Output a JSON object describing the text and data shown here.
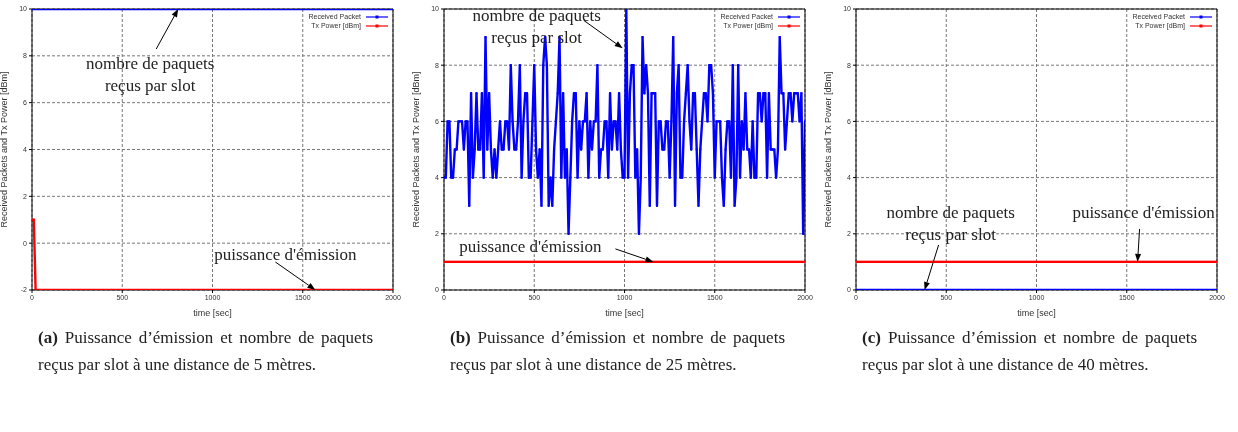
{
  "chart_data": [
    {
      "type": "line",
      "xlabel": "time [sec]",
      "ylabel": "Received Packets and Tx Power [dBm]",
      "xlim": [
        0,
        2000
      ],
      "xticks": [
        0,
        500,
        1000,
        1500,
        2000
      ],
      "ylim": [
        -2,
        10
      ],
      "yticks": [
        -2,
        0,
        2,
        4,
        6,
        8,
        10
      ],
      "grid": true,
      "legend": "top right",
      "marker": "square",
      "line_style": "solid",
      "x": [
        0,
        10,
        20,
        30,
        40,
        50,
        60,
        70,
        80,
        90,
        100,
        110,
        120,
        130,
        140,
        150,
        160,
        170,
        180,
        190,
        200,
        210,
        220,
        230,
        240,
        250,
        260,
        270,
        280,
        290,
        300,
        310,
        320,
        330,
        340,
        350,
        360,
        370,
        380,
        390,
        400,
        410,
        420,
        430,
        440,
        450,
        460,
        470,
        480,
        490,
        500,
        510,
        520,
        530,
        540,
        550,
        560,
        570,
        580,
        590,
        600,
        610,
        620,
        630,
        640,
        650,
        660,
        670,
        680,
        690,
        700,
        710,
        720,
        730,
        740,
        750,
        760,
        770,
        780,
        790,
        800,
        810,
        820,
        830,
        840,
        850,
        860,
        870,
        880,
        890,
        900,
        910,
        920,
        930,
        940,
        950,
        960,
        970,
        980,
        990,
        1000,
        1010,
        1020,
        1030,
        1040,
        1050,
        1060,
        1070,
        1080,
        1090,
        1100,
        1110,
        1120,
        1130,
        1140,
        1150,
        1160,
        1170,
        1180,
        1190,
        1200,
        1210,
        1220,
        1230,
        1240,
        1250,
        1260,
        1270,
        1280,
        1290,
        1300,
        1310,
        1320,
        1330,
        1340,
        1350,
        1360,
        1370,
        1380,
        1390,
        1400,
        1410,
        1420,
        1430,
        1440,
        1450,
        1460,
        1470,
        1480,
        1490,
        1500,
        1510,
        1520,
        1530,
        1540,
        1550,
        1560,
        1570,
        1580,
        1590,
        1600,
        1610,
        1620,
        1630,
        1640,
        1650,
        1660,
        1670,
        1680,
        1690,
        1700,
        1710,
        1720,
        1730,
        1740,
        1750,
        1760,
        1770,
        1780,
        1790,
        1800,
        1810,
        1820,
        1830,
        1840,
        1850,
        1860,
        1870,
        1880,
        1890,
        1900,
        1910,
        1920,
        1930,
        1940,
        1950,
        1960,
        1970,
        1980,
        1990,
        2000
      ],
      "series": [
        {
          "name": "Received Packet",
          "color": "#0000ff",
          "values": [
            10,
            10,
            10,
            10,
            10,
            10,
            10,
            10,
            10,
            10,
            10,
            10,
            10,
            10,
            10,
            10,
            10,
            10,
            10,
            10,
            10,
            10,
            10,
            10,
            10,
            10,
            10,
            10,
            10,
            10,
            10,
            10,
            10,
            10,
            10,
            10,
            10,
            10,
            10,
            10,
            10,
            10,
            10,
            10,
            10,
            10,
            10,
            10,
            10,
            10,
            10,
            10,
            10,
            10,
            10,
            10,
            10,
            10,
            10,
            10,
            10,
            10,
            10,
            10,
            10,
            10,
            10,
            10,
            10,
            10,
            10,
            10,
            10,
            10,
            10,
            10,
            10,
            10,
            10,
            10,
            10,
            10,
            10,
            10,
            10,
            10,
            10,
            10,
            10,
            10,
            10,
            10,
            10,
            10,
            10,
            10,
            10,
            10,
            10,
            10,
            10,
            10,
            10,
            10,
            10,
            10,
            10,
            10,
            10,
            10,
            10,
            10,
            10,
            10,
            10,
            10,
            10,
            10,
            10,
            10,
            10,
            10,
            10,
            10,
            10,
            10,
            10,
            10,
            10,
            10,
            10,
            10,
            10,
            10,
            10,
            10,
            10,
            10,
            10,
            10,
            10,
            10,
            10,
            10,
            10,
            10,
            10,
            10,
            10,
            10,
            10,
            10,
            10,
            10,
            10,
            10,
            10,
            10,
            10,
            10,
            10,
            10,
            10,
            10,
            10,
            10,
            10,
            10,
            10,
            10,
            10,
            10,
            10,
            10,
            10,
            10,
            10,
            10,
            10,
            10,
            10,
            10,
            10,
            10,
            10,
            10,
            10,
            10,
            10,
            10,
            10,
            10,
            10,
            10,
            10,
            10,
            10,
            10,
            10,
            10,
            10
          ]
        },
        {
          "name": "Tx Power [dBm]",
          "color": "#ff0000",
          "values": [
            1,
            1,
            -2,
            -2,
            -2,
            -2,
            -2,
            -2,
            -2,
            -2,
            -2,
            -2,
            -2,
            -2,
            -2,
            -2,
            -2,
            -2,
            -2,
            -2,
            -2,
            -2,
            -2,
            -2,
            -2,
            -2,
            -2,
            -2,
            -2,
            -2,
            -2,
            -2,
            -2,
            -2,
            -2,
            -2,
            -2,
            -2,
            -2,
            -2,
            -2,
            -2,
            -2,
            -2,
            -2,
            -2,
            -2,
            -2,
            -2,
            -2,
            -2,
            -2,
            -2,
            -2,
            -2,
            -2,
            -2,
            -2,
            -2,
            -2,
            -2,
            -2,
            -2,
            -2,
            -2,
            -2,
            -2,
            -2,
            -2,
            -2,
            -2,
            -2,
            -2,
            -2,
            -2,
            -2,
            -2,
            -2,
            -2,
            -2,
            -2,
            -2,
            -2,
            -2,
            -2,
            -2,
            -2,
            -2,
            -2,
            -2,
            -2,
            -2,
            -2,
            -2,
            -2,
            -2,
            -2,
            -2,
            -2,
            -2,
            -2,
            -2,
            -2,
            -2,
            -2,
            -2,
            -2,
            -2,
            -2,
            -2,
            -2,
            -2,
            -2,
            -2,
            -2,
            -2,
            -2,
            -2,
            -2,
            -2,
            -2,
            -2,
            -2,
            -2,
            -2,
            -2,
            -2,
            -2,
            -2,
            -2,
            -2,
            -2,
            -2,
            -2,
            -2,
            -2,
            -2,
            -2,
            -2,
            -2,
            -2,
            -2,
            -2,
            -2,
            -2,
            -2,
            -2,
            -2,
            -2,
            -2,
            -2,
            -2,
            -2,
            -2,
            -2,
            -2,
            -2,
            -2,
            -2,
            -2,
            -2,
            -2,
            -2,
            -2,
            -2,
            -2,
            -2,
            -2,
            -2,
            -2,
            -2,
            -2,
            -2,
            -2,
            -2,
            -2,
            -2,
            -2,
            -2,
            -2,
            -2,
            -2,
            -2,
            -2,
            -2,
            -2,
            -2,
            -2,
            -2,
            -2,
            -2,
            -2,
            -2,
            -2,
            -2,
            -2,
            -2,
            -2,
            -2,
            -2,
            -2
          ]
        }
      ],
      "annotations": [
        {
          "text": "nombre de paquets reçus par slot",
          "x": 810,
          "y": 10
        },
        {
          "text": "puissance d'émission",
          "x": 1570,
          "y": -2
        },
        "(a)",
        "Puissance d’émission et nombre de paquets reçus par slot à une distance de 5 mètres."
      ]
    },
    {
      "type": "line",
      "xlabel": "time [sec]",
      "ylabel": "Received Packets and Tx Power [dBm]",
      "xlim": [
        0,
        2000
      ],
      "xticks": [
        0,
        500,
        1000,
        1500,
        2000
      ],
      "ylim": [
        0,
        10
      ],
      "yticks": [
        0,
        2,
        4,
        6,
        8,
        10
      ],
      "grid": true,
      "legend": "top right",
      "marker": "square",
      "line_style": "solid",
      "x": [
        0,
        10,
        20,
        30,
        40,
        50,
        60,
        70,
        80,
        90,
        100,
        110,
        120,
        130,
        140,
        150,
        160,
        170,
        180,
        190,
        200,
        210,
        220,
        230,
        240,
        250,
        260,
        270,
        280,
        290,
        300,
        310,
        320,
        330,
        340,
        350,
        360,
        370,
        380,
        390,
        400,
        410,
        420,
        430,
        440,
        450,
        460,
        470,
        480,
        490,
        500,
        510,
        520,
        530,
        540,
        550,
        560,
        570,
        580,
        590,
        600,
        610,
        620,
        630,
        640,
        650,
        660,
        670,
        680,
        690,
        700,
        710,
        720,
        730,
        740,
        750,
        760,
        770,
        780,
        790,
        800,
        810,
        820,
        830,
        840,
        850,
        860,
        870,
        880,
        890,
        900,
        910,
        920,
        930,
        940,
        950,
        960,
        970,
        980,
        990,
        1000,
        1010,
        1020,
        1030,
        1040,
        1050,
        1060,
        1070,
        1080,
        1090,
        1100,
        1110,
        1120,
        1130,
        1140,
        1150,
        1160,
        1170,
        1180,
        1190,
        1200,
        1210,
        1220,
        1230,
        1240,
        1250,
        1260,
        1270,
        1280,
        1290,
        1300,
        1310,
        1320,
        1330,
        1340,
        1350,
        1360,
        1370,
        1380,
        1390,
        1400,
        1410,
        1420,
        1430,
        1440,
        1450,
        1460,
        1470,
        1480,
        1490,
        1500,
        1510,
        1520,
        1530,
        1540,
        1550,
        1560,
        1570,
        1580,
        1590,
        1600,
        1610,
        1620,
        1630,
        1640,
        1650,
        1660,
        1670,
        1680,
        1690,
        1700,
        1710,
        1720,
        1730,
        1740,
        1750,
        1760,
        1770,
        1780,
        1790,
        1800,
        1810,
        1820,
        1830,
        1840,
        1850,
        1860,
        1870,
        1880,
        1890,
        1900,
        1910,
        1920,
        1930,
        1940,
        1950,
        1960,
        1970,
        1980,
        1990,
        2000
      ],
      "series": [
        {
          "name": "Received Packet",
          "color": "#0000ff",
          "values": [
            4,
            4,
            6,
            6,
            4,
            4,
            5,
            5,
            6,
            6,
            6,
            5,
            6,
            6,
            3,
            7,
            4,
            5,
            7,
            5,
            5,
            7,
            4,
            9,
            5,
            7,
            5,
            4,
            5,
            4,
            5,
            6,
            5,
            5,
            6,
            6,
            5,
            8,
            6,
            5,
            5,
            6,
            8,
            4,
            6,
            7,
            7,
            4,
            4,
            6,
            8,
            5,
            4,
            5,
            3,
            8,
            9,
            8,
            3,
            4,
            3,
            5,
            6,
            7,
            9,
            4,
            7,
            4,
            5,
            2,
            4,
            6,
            7,
            7,
            4,
            6,
            5,
            6,
            6,
            7,
            4,
            6,
            5,
            6,
            6,
            8,
            4,
            5,
            5,
            6,
            6,
            4,
            7,
            5,
            6,
            6,
            5,
            7,
            5,
            4,
            4,
            10,
            4,
            7,
            8,
            8,
            4,
            5,
            2,
            4,
            9,
            7,
            8,
            7,
            3,
            7,
            7,
            7,
            3,
            6,
            6,
            5,
            5,
            6,
            6,
            4,
            6,
            9,
            3,
            7,
            8,
            4,
            4,
            6,
            7,
            8,
            6,
            5,
            7,
            7,
            5,
            3,
            5,
            6,
            7,
            7,
            6,
            8,
            8,
            7,
            4,
            6,
            6,
            6,
            4,
            3,
            5,
            6,
            6,
            4,
            8,
            3,
            4,
            8,
            4,
            6,
            5,
            7,
            5,
            5,
            4,
            6,
            4,
            4,
            7,
            7,
            6,
            7,
            7,
            4,
            7,
            5,
            5,
            5,
            4,
            5,
            9,
            7,
            7,
            5,
            6,
            7,
            7,
            6,
            7,
            7,
            7,
            6,
            7,
            2,
            6
          ]
        },
        {
          "name": "Tx Power [dBm]",
          "color": "#ff0000",
          "values": [
            1,
            1,
            1,
            1,
            1,
            1,
            1,
            1,
            1,
            1,
            1,
            1,
            1,
            1,
            1,
            1,
            1,
            1,
            1,
            1,
            1,
            1,
            1,
            1,
            1,
            1,
            1,
            1,
            1,
            1,
            1,
            1,
            1,
            1,
            1,
            1,
            1,
            1,
            1,
            1,
            1,
            1,
            1,
            1,
            1,
            1,
            1,
            1,
            1,
            1,
            1,
            1,
            1,
            1,
            1,
            1,
            1,
            1,
            1,
            1,
            1,
            1,
            1,
            1,
            1,
            1,
            1,
            1,
            1,
            1,
            1,
            1,
            1,
            1,
            1,
            1,
            1,
            1,
            1,
            1,
            1,
            1,
            1,
            1,
            1,
            1,
            1,
            1,
            1,
            1,
            1,
            1,
            1,
            1,
            1,
            1,
            1,
            1,
            1,
            1,
            1,
            1,
            1,
            1,
            1,
            1,
            1,
            1,
            1,
            1,
            1,
            1,
            1,
            1,
            1,
            1,
            1,
            1,
            1,
            1,
            1,
            1,
            1,
            1,
            1,
            1,
            1,
            1,
            1,
            1,
            1,
            1,
            1,
            1,
            1,
            1,
            1,
            1,
            1,
            1,
            1,
            1,
            1,
            1,
            1,
            1,
            1,
            1,
            1,
            1,
            1,
            1,
            1,
            1,
            1,
            1,
            1,
            1,
            1,
            1,
            1,
            1,
            1,
            1,
            1,
            1,
            1,
            1,
            1,
            1,
            1,
            1,
            1,
            1,
            1,
            1,
            1,
            1,
            1,
            1,
            1,
            1,
            1,
            1,
            1,
            1,
            1,
            1,
            1,
            1,
            1,
            1,
            1,
            1,
            1,
            1,
            1,
            1,
            1,
            1,
            1
          ]
        }
      ],
      "annotations": [
        {
          "text": "nombre de paquets reçus par slot",
          "x": 990,
          "y": 8.6
        },
        {
          "text": "puissance d'émission",
          "x": 1160,
          "y": 1
        },
        "(b)",
        "Puissance d’émission et nombre de paquets reçus par slot à une distance de 25 mètres."
      ]
    },
    {
      "type": "line",
      "xlabel": "time [sec]",
      "ylabel": "Received Packets and Tx Power [dBm]",
      "xlim": [
        0,
        2000
      ],
      "xticks": [
        0,
        500,
        1000,
        1500,
        2000
      ],
      "ylim": [
        0,
        10
      ],
      "yticks": [
        0,
        2,
        4,
        6,
        8,
        10
      ],
      "grid": true,
      "legend": "top right",
      "marker": "square",
      "line_style": "solid",
      "x": [
        0,
        10,
        20,
        30,
        40,
        50,
        60,
        70,
        80,
        90,
        100,
        110,
        120,
        130,
        140,
        150,
        160,
        170,
        180,
        190,
        200,
        210,
        220,
        230,
        240,
        250,
        260,
        270,
        280,
        290,
        300,
        310,
        320,
        330,
        340,
        350,
        360,
        370,
        380,
        390,
        400,
        410,
        420,
        430,
        440,
        450,
        460,
        470,
        480,
        490,
        500,
        510,
        520,
        530,
        540,
        550,
        560,
        570,
        580,
        590,
        600,
        610,
        620,
        630,
        640,
        650,
        660,
        670,
        680,
        690,
        700,
        710,
        720,
        730,
        740,
        750,
        760,
        770,
        780,
        790,
        800,
        810,
        820,
        830,
        840,
        850,
        860,
        870,
        880,
        890,
        900,
        910,
        920,
        930,
        940,
        950,
        960,
        970,
        980,
        990,
        1000,
        1010,
        1020,
        1030,
        1040,
        1050,
        1060,
        1070,
        1080,
        1090,
        1100,
        1110,
        1120,
        1130,
        1140,
        1150,
        1160,
        1170,
        1180,
        1190,
        1200,
        1210,
        1220,
        1230,
        1240,
        1250,
        1260,
        1270,
        1280,
        1290,
        1300,
        1310,
        1320,
        1330,
        1340,
        1350,
        1360,
        1370,
        1380,
        1390,
        1400,
        1410,
        1420,
        1430,
        1440,
        1450,
        1460,
        1470,
        1480,
        1490,
        1500,
        1510,
        1520,
        1530,
        1540,
        1550,
        1560,
        1570,
        1580,
        1590,
        1600,
        1610,
        1620,
        1630,
        1640,
        1650,
        1660,
        1670,
        1680,
        1690,
        1700,
        1710,
        1720,
        1730,
        1740,
        1750,
        1760,
        1770,
        1780,
        1790,
        1800,
        1810,
        1820,
        1830,
        1840,
        1850,
        1860,
        1870,
        1880,
        1890,
        1900,
        1910,
        1920,
        1930,
        1940,
        1950,
        1960,
        1970,
        1980,
        1990,
        2000
      ],
      "series": [
        {
          "name": "Received Packet",
          "color": "#0000ff",
          "values": [
            0,
            0,
            0,
            0,
            0,
            0,
            0,
            0,
            0,
            0,
            0,
            0,
            0,
            0,
            0,
            0,
            0,
            0,
            0,
            0,
            0,
            0,
            0,
            0,
            0,
            0,
            0,
            0,
            0,
            0,
            0,
            0,
            0,
            0,
            0,
            0,
            0,
            0,
            0,
            0,
            0,
            0,
            0,
            0,
            0,
            0,
            0,
            0,
            0,
            0,
            0,
            0,
            0,
            0,
            0,
            0,
            0,
            0,
            0,
            0,
            0,
            0,
            0,
            0,
            0,
            0,
            0,
            0,
            0,
            0,
            0,
            0,
            0,
            0,
            0,
            0,
            0,
            0,
            0,
            0,
            0,
            0,
            0,
            0,
            0,
            0,
            0,
            0,
            0,
            0,
            0,
            0,
            0,
            0,
            0,
            0,
            0,
            0,
            0,
            0,
            0,
            0,
            0,
            0,
            0,
            0,
            0,
            0,
            0,
            0,
            0,
            0,
            0,
            0,
            0,
            0,
            0,
            0,
            0,
            0,
            0,
            0,
            0,
            0,
            0,
            0,
            0,
            0,
            0,
            0,
            0,
            0,
            0,
            0,
            0,
            0,
            0,
            0,
            0,
            0,
            0,
            0,
            0,
            0,
            0,
            0,
            0,
            0,
            0,
            0,
            0,
            0,
            0,
            0,
            0,
            0,
            0,
            0,
            0,
            0,
            0,
            0,
            0,
            0,
            0,
            0,
            0,
            0,
            0,
            0,
            0,
            0,
            0,
            0,
            0,
            0,
            0,
            0,
            0,
            0,
            0,
            0,
            0,
            0,
            0,
            0,
            0,
            0,
            0,
            0,
            0,
            0,
            0,
            0,
            0,
            0,
            0,
            0,
            0,
            0,
            0
          ]
        },
        {
          "name": "Tx Power [dBm]",
          "color": "#ff0000",
          "values": [
            1,
            1,
            1,
            1,
            1,
            1,
            1,
            1,
            1,
            1,
            1,
            1,
            1,
            1,
            1,
            1,
            1,
            1,
            1,
            1,
            1,
            1,
            1,
            1,
            1,
            1,
            1,
            1,
            1,
            1,
            1,
            1,
            1,
            1,
            1,
            1,
            1,
            1,
            1,
            1,
            1,
            1,
            1,
            1,
            1,
            1,
            1,
            1,
            1,
            1,
            1,
            1,
            1,
            1,
            1,
            1,
            1,
            1,
            1,
            1,
            1,
            1,
            1,
            1,
            1,
            1,
            1,
            1,
            1,
            1,
            1,
            1,
            1,
            1,
            1,
            1,
            1,
            1,
            1,
            1,
            1,
            1,
            1,
            1,
            1,
            1,
            1,
            1,
            1,
            1,
            1,
            1,
            1,
            1,
            1,
            1,
            1,
            1,
            1,
            1,
            1,
            1,
            1,
            1,
            1,
            1,
            1,
            1,
            1,
            1,
            1,
            1,
            1,
            1,
            1,
            1,
            1,
            1,
            1,
            1,
            1,
            1,
            1,
            1,
            1,
            1,
            1,
            1,
            1,
            1,
            1,
            1,
            1,
            1,
            1,
            1,
            1,
            1,
            1,
            1,
            1,
            1,
            1,
            1,
            1,
            1,
            1,
            1,
            1,
            1,
            1,
            1,
            1,
            1,
            1,
            1,
            1,
            1,
            1,
            1,
            1,
            1,
            1,
            1,
            1,
            1,
            1,
            1,
            1,
            1,
            1,
            1,
            1,
            1,
            1,
            1,
            1,
            1,
            1,
            1,
            1,
            1,
            1,
            1,
            1,
            1,
            1,
            1,
            1,
            1,
            1,
            1,
            1,
            1,
            1,
            1,
            1,
            1,
            1,
            1,
            1
          ]
        }
      ],
      "annotations": [
        {
          "text": "nombre de paquets reçus par slot",
          "x": 380,
          "y": 0
        },
        {
          "text": "puissance d'émission",
          "x": 1560,
          "y": 1
        },
        "(c)",
        "Puissance d’émission et nombre de paquets reçus par slot à une distance de 40 mètres."
      ]
    }
  ]
}
